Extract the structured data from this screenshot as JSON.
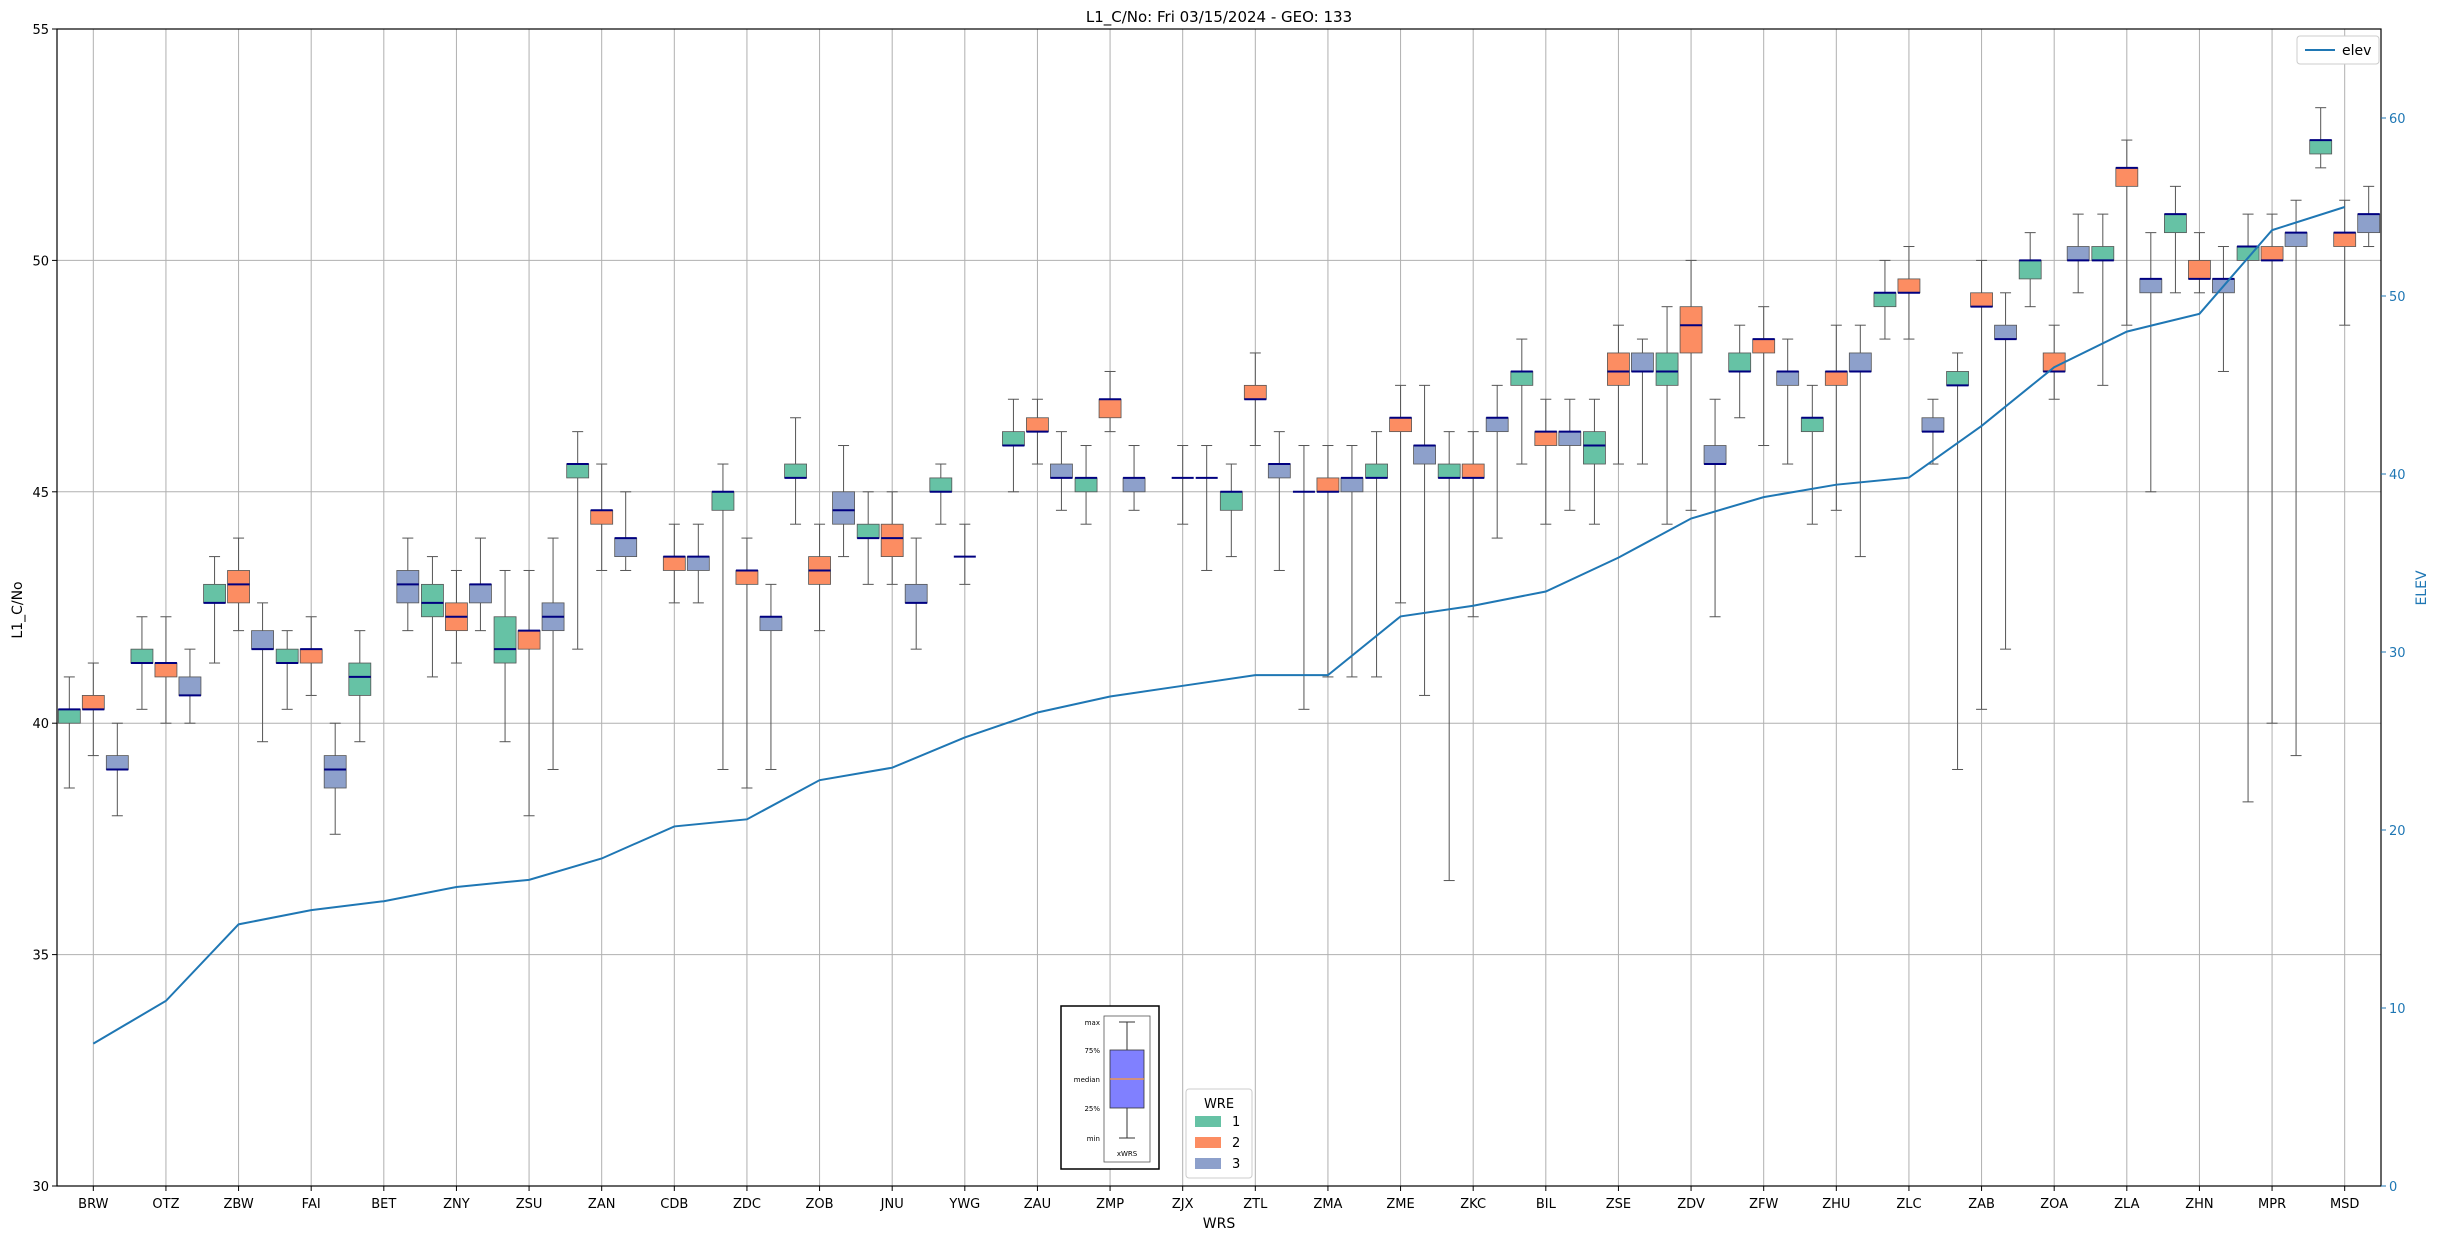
{
  "chart_data": {
    "type": "box",
    "title": "L1_C/No: Fri 03/15/2024 - GEO: 133",
    "xlabel": "WRS",
    "ylabel": "L1_C/No",
    "y2label": "ELEV",
    "ylim": [
      30,
      55
    ],
    "y2lim": [
      0,
      65
    ],
    "yticks": [
      30,
      35,
      40,
      45,
      50,
      55
    ],
    "y2ticks": [
      0,
      10,
      20,
      30,
      40,
      50,
      60
    ],
    "grid": true,
    "categories": [
      "BRW",
      "OTZ",
      "ZBW",
      "FAI",
      "BET",
      "ZNY",
      "ZSU",
      "ZAN",
      "CDB",
      "ZDC",
      "ZOB",
      "JNU",
      "YWG",
      "ZAU",
      "ZMP",
      "ZJX",
      "ZTL",
      "ZMA",
      "ZME",
      "ZKC",
      "BIL",
      "ZSE",
      "ZDV",
      "ZFW",
      "ZHU",
      "ZLC",
      "ZAB",
      "ZOA",
      "ZLA",
      "ZHN",
      "MPR",
      "MSD"
    ],
    "box_series": [
      {
        "name": "1",
        "color": "#66c2a5",
        "values": [
          {
            "min": 38.6,
            "q1": 40.0,
            "median": 40.3,
            "q3": 40.3,
            "max": 41.0
          },
          {
            "min": 40.3,
            "q1": 41.3,
            "median": 41.3,
            "q3": 41.6,
            "max": 42.3
          },
          {
            "min": 41.3,
            "q1": 42.6,
            "median": 42.6,
            "q3": 43.0,
            "max": 43.6
          },
          {
            "min": 40.3,
            "q1": 41.3,
            "median": 41.3,
            "q3": 41.6,
            "max": 42.0
          },
          {
            "min": 39.6,
            "q1": 40.6,
            "median": 41.0,
            "q3": 41.3,
            "max": 42.0
          },
          {
            "min": 41.0,
            "q1": 42.3,
            "median": 42.6,
            "q3": 43.0,
            "max": 43.6
          },
          {
            "min": 39.6,
            "q1": 41.3,
            "median": 41.6,
            "q3": 42.3,
            "max": 43.3
          },
          {
            "min": 41.6,
            "q1": 45.3,
            "median": 45.6,
            "q3": 45.6,
            "max": 46.3
          },
          null,
          {
            "min": 39.0,
            "q1": 44.6,
            "median": 45.0,
            "q3": 45.0,
            "max": 45.6
          },
          {
            "min": 44.3,
            "q1": 45.3,
            "median": 45.3,
            "q3": 45.6,
            "max": 46.6
          },
          {
            "min": 43.0,
            "q1": 44.0,
            "median": 44.0,
            "q3": 44.3,
            "max": 45.0
          },
          {
            "min": 44.3,
            "q1": 45.0,
            "median": 45.0,
            "q3": 45.3,
            "max": 45.6
          },
          {
            "min": 45.0,
            "q1": 46.0,
            "median": 46.0,
            "q3": 46.3,
            "max": 47.0
          },
          {
            "min": 44.3,
            "q1": 45.0,
            "median": 45.3,
            "q3": 45.3,
            "max": 46.0
          },
          null,
          {
            "min": 43.6,
            "q1": 44.6,
            "median": 45.0,
            "q3": 45.0,
            "max": 45.6
          },
          {
            "min": 40.3,
            "q1": 45.0,
            "median": 45.0,
            "q3": 45.0,
            "max": 46.0
          },
          {
            "min": 41.0,
            "q1": 45.3,
            "median": 45.3,
            "q3": 45.6,
            "max": 46.3
          },
          {
            "min": 36.6,
            "q1": 45.3,
            "median": 45.3,
            "q3": 45.6,
            "max": 46.3
          },
          {
            "min": 45.6,
            "q1": 47.3,
            "median": 47.6,
            "q3": 47.6,
            "max": 48.3
          },
          {
            "min": 44.3,
            "q1": 45.6,
            "median": 46.0,
            "q3": 46.3,
            "max": 47.0
          },
          {
            "min": 44.3,
            "q1": 47.3,
            "median": 47.6,
            "q3": 48.0,
            "max": 49.0
          },
          {
            "min": 46.6,
            "q1": 47.6,
            "median": 47.6,
            "q3": 48.0,
            "max": 48.6
          },
          {
            "min": 44.3,
            "q1": 46.3,
            "median": 46.6,
            "q3": 46.6,
            "max": 47.3
          },
          {
            "min": 48.3,
            "q1": 49.0,
            "median": 49.3,
            "q3": 49.3,
            "max": 50.0
          },
          {
            "min": 39.0,
            "q1": 47.3,
            "median": 47.3,
            "q3": 47.6,
            "max": 48.0
          },
          {
            "min": 49.0,
            "q1": 49.6,
            "median": 50.0,
            "q3": 50.0,
            "max": 50.6
          },
          {
            "min": 47.3,
            "q1": 50.0,
            "median": 50.0,
            "q3": 50.3,
            "max": 51.0
          },
          {
            "min": 49.3,
            "q1": 50.6,
            "median": 51.0,
            "q3": 51.0,
            "max": 51.6
          },
          {
            "min": 38.3,
            "q1": 50.0,
            "median": 50.3,
            "q3": 50.3,
            "max": 51.0
          },
          {
            "min": 52.0,
            "q1": 52.3,
            "median": 52.6,
            "q3": 52.6,
            "max": 53.3
          }
        ]
      },
      {
        "name": "2",
        "color": "#fc8d62",
        "values": [
          {
            "min": 39.3,
            "q1": 40.3,
            "median": 40.3,
            "q3": 40.6,
            "max": 41.3
          },
          {
            "min": 40.0,
            "q1": 41.0,
            "median": 41.3,
            "q3": 41.3,
            "max": 42.3
          },
          {
            "min": 42.0,
            "q1": 42.6,
            "median": 43.0,
            "q3": 43.3,
            "max": 44.0
          },
          {
            "min": 40.6,
            "q1": 41.3,
            "median": 41.6,
            "q3": 41.6,
            "max": 42.3
          },
          null,
          {
            "min": 41.3,
            "q1": 42.0,
            "median": 42.3,
            "q3": 42.6,
            "max": 43.3
          },
          {
            "min": 38.0,
            "q1": 41.6,
            "median": 42.0,
            "q3": 42.0,
            "max": 43.3
          },
          {
            "min": 43.3,
            "q1": 44.3,
            "median": 44.6,
            "q3": 44.6,
            "max": 45.6
          },
          {
            "min": 42.6,
            "q1": 43.3,
            "median": 43.6,
            "q3": 43.6,
            "max": 44.3
          },
          {
            "min": 38.6,
            "q1": 43.0,
            "median": 43.3,
            "q3": 43.3,
            "max": 44.0
          },
          {
            "min": 42.0,
            "q1": 43.0,
            "median": 43.3,
            "q3": 43.6,
            "max": 44.3
          },
          {
            "min": 43.0,
            "q1": 43.6,
            "median": 44.0,
            "q3": 44.3,
            "max": 45.0
          },
          {
            "min": 43.0,
            "q1": 43.6,
            "median": 43.6,
            "q3": 43.6,
            "max": 44.3
          },
          {
            "min": 45.6,
            "q1": 46.3,
            "median": 46.3,
            "q3": 46.6,
            "max": 47.0
          },
          {
            "min": 46.3,
            "q1": 46.6,
            "median": 47.0,
            "q3": 47.0,
            "max": 47.6
          },
          {
            "min": 44.3,
            "q1": 45.3,
            "median": 45.3,
            "q3": 45.3,
            "max": 46.0
          },
          {
            "min": 46.0,
            "q1": 47.0,
            "median": 47.0,
            "q3": 47.3,
            "max": 48.0
          },
          {
            "min": 41.0,
            "q1": 45.0,
            "median": 45.0,
            "q3": 45.3,
            "max": 46.0
          },
          {
            "min": 42.6,
            "q1": 46.3,
            "median": 46.6,
            "q3": 46.6,
            "max": 47.3
          },
          {
            "min": 42.3,
            "q1": 45.3,
            "median": 45.3,
            "q3": 45.6,
            "max": 46.3
          },
          {
            "min": 44.3,
            "q1": 46.0,
            "median": 46.3,
            "q3": 46.3,
            "max": 47.0
          },
          {
            "min": 45.6,
            "q1": 47.3,
            "median": 47.6,
            "q3": 48.0,
            "max": 48.6
          },
          {
            "min": 44.6,
            "q1": 48.0,
            "median": 48.6,
            "q3": 49.0,
            "max": 50.0
          },
          {
            "min": 46.0,
            "q1": 48.0,
            "median": 48.3,
            "q3": 48.3,
            "max": 49.0
          },
          {
            "min": 44.6,
            "q1": 47.3,
            "median": 47.6,
            "q3": 47.6,
            "max": 48.6
          },
          {
            "min": 48.3,
            "q1": 49.3,
            "median": 49.3,
            "q3": 49.6,
            "max": 50.3
          },
          {
            "min": 40.3,
            "q1": 49.0,
            "median": 49.0,
            "q3": 49.3,
            "max": 50.0
          },
          {
            "min": 47.0,
            "q1": 47.6,
            "median": 47.6,
            "q3": 48.0,
            "max": 48.6
          },
          {
            "min": 48.6,
            "q1": 51.6,
            "median": 52.0,
            "q3": 52.0,
            "max": 52.6
          },
          {
            "min": 49.3,
            "q1": 49.6,
            "median": 49.6,
            "q3": 50.0,
            "max": 50.6
          },
          {
            "min": 40.0,
            "q1": 50.0,
            "median": 50.0,
            "q3": 50.3,
            "max": 51.0
          },
          {
            "min": 48.6,
            "q1": 50.3,
            "median": 50.6,
            "q3": 50.6,
            "max": 51.3
          }
        ]
      },
      {
        "name": "3",
        "color": "#8da0cb",
        "values": [
          {
            "min": 38.0,
            "q1": 39.0,
            "median": 39.0,
            "q3": 39.3,
            "max": 40.0
          },
          {
            "min": 40.0,
            "q1": 40.6,
            "median": 40.6,
            "q3": 41.0,
            "max": 41.6
          },
          {
            "min": 39.6,
            "q1": 41.6,
            "median": 41.6,
            "q3": 42.0,
            "max": 42.6
          },
          {
            "min": 37.6,
            "q1": 38.6,
            "median": 39.0,
            "q3": 39.3,
            "max": 40.0
          },
          {
            "min": 42.0,
            "q1": 42.6,
            "median": 43.0,
            "q3": 43.3,
            "max": 44.0
          },
          {
            "min": 42.0,
            "q1": 42.6,
            "median": 43.0,
            "q3": 43.0,
            "max": 44.0
          },
          {
            "min": 39.0,
            "q1": 42.0,
            "median": 42.3,
            "q3": 42.6,
            "max": 44.0
          },
          {
            "min": 43.3,
            "q1": 43.6,
            "median": 44.0,
            "q3": 44.0,
            "max": 45.0
          },
          {
            "min": 42.6,
            "q1": 43.3,
            "median": 43.6,
            "q3": 43.6,
            "max": 44.3
          },
          {
            "min": 39.0,
            "q1": 42.0,
            "median": 42.3,
            "q3": 42.3,
            "max": 43.0
          },
          {
            "min": 43.6,
            "q1": 44.3,
            "median": 44.6,
            "q3": 45.0,
            "max": 46.0
          },
          {
            "min": 41.6,
            "q1": 42.6,
            "median": 42.6,
            "q3": 43.0,
            "max": 44.0
          },
          null,
          {
            "min": 44.6,
            "q1": 45.3,
            "median": 45.3,
            "q3": 45.6,
            "max": 46.3
          },
          {
            "min": 44.6,
            "q1": 45.0,
            "median": 45.3,
            "q3": 45.3,
            "max": 46.0
          },
          {
            "min": 43.3,
            "q1": 45.3,
            "median": 45.3,
            "q3": 45.3,
            "max": 46.0
          },
          {
            "min": 43.3,
            "q1": 45.3,
            "median": 45.6,
            "q3": 45.6,
            "max": 46.3
          },
          {
            "min": 41.0,
            "q1": 45.0,
            "median": 45.3,
            "q3": 45.3,
            "max": 46.0
          },
          {
            "min": 40.6,
            "q1": 45.6,
            "median": 46.0,
            "q3": 46.0,
            "max": 47.3
          },
          {
            "min": 44.0,
            "q1": 46.3,
            "median": 46.6,
            "q3": 46.6,
            "max": 47.3
          },
          {
            "min": 44.6,
            "q1": 46.0,
            "median": 46.3,
            "q3": 46.3,
            "max": 47.0
          },
          {
            "min": 45.6,
            "q1": 47.6,
            "median": 47.6,
            "q3": 48.0,
            "max": 48.3
          },
          {
            "min": 42.3,
            "q1": 45.6,
            "median": 45.6,
            "q3": 46.0,
            "max": 47.0
          },
          {
            "min": 45.6,
            "q1": 47.3,
            "median": 47.6,
            "q3": 47.6,
            "max": 48.3
          },
          {
            "min": 43.6,
            "q1": 47.6,
            "median": 47.6,
            "q3": 48.0,
            "max": 48.6
          },
          {
            "min": 45.6,
            "q1": 46.3,
            "median": 46.3,
            "q3": 46.6,
            "max": 47.0
          },
          {
            "min": 41.6,
            "q1": 48.3,
            "median": 48.3,
            "q3": 48.6,
            "max": 49.3
          },
          {
            "min": 49.3,
            "q1": 50.0,
            "median": 50.0,
            "q3": 50.3,
            "max": 51.0
          },
          {
            "min": 45.0,
            "q1": 49.3,
            "median": 49.6,
            "q3": 49.6,
            "max": 50.6
          },
          {
            "min": 47.6,
            "q1": 49.3,
            "median": 49.6,
            "q3": 49.6,
            "max": 50.3
          },
          {
            "min": 39.3,
            "q1": 50.3,
            "median": 50.6,
            "q3": 50.6,
            "max": 51.3
          },
          {
            "min": 50.3,
            "q1": 50.6,
            "median": 51.0,
            "q3": 51.0,
            "max": 51.6
          }
        ]
      }
    ],
    "line_series": {
      "name": "elev",
      "axis": "right",
      "color": "#1f77b4",
      "values": [
        8.0,
        10.4,
        14.7,
        15.5,
        16.0,
        16.8,
        17.2,
        18.4,
        20.2,
        20.6,
        22.8,
        23.5,
        25.2,
        26.6,
        27.5,
        28.1,
        28.7,
        28.7,
        32.0,
        32.6,
        33.4,
        35.3,
        37.5,
        38.7,
        39.4,
        39.8,
        42.7,
        46.0,
        48.0,
        49.0,
        53.7,
        55.0
      ]
    },
    "legends": {
      "line": {
        "placement": "top-right",
        "entries": [
          "elev"
        ]
      },
      "wre": {
        "title": "WRE",
        "placement": "bottom-center",
        "entries": [
          "1",
          "2",
          "3"
        ]
      }
    },
    "box_key": {
      "placement": "bottom-center",
      "labels": [
        "max",
        "75%",
        "median",
        "25%",
        "min"
      ],
      "category": "xWRS"
    }
  }
}
